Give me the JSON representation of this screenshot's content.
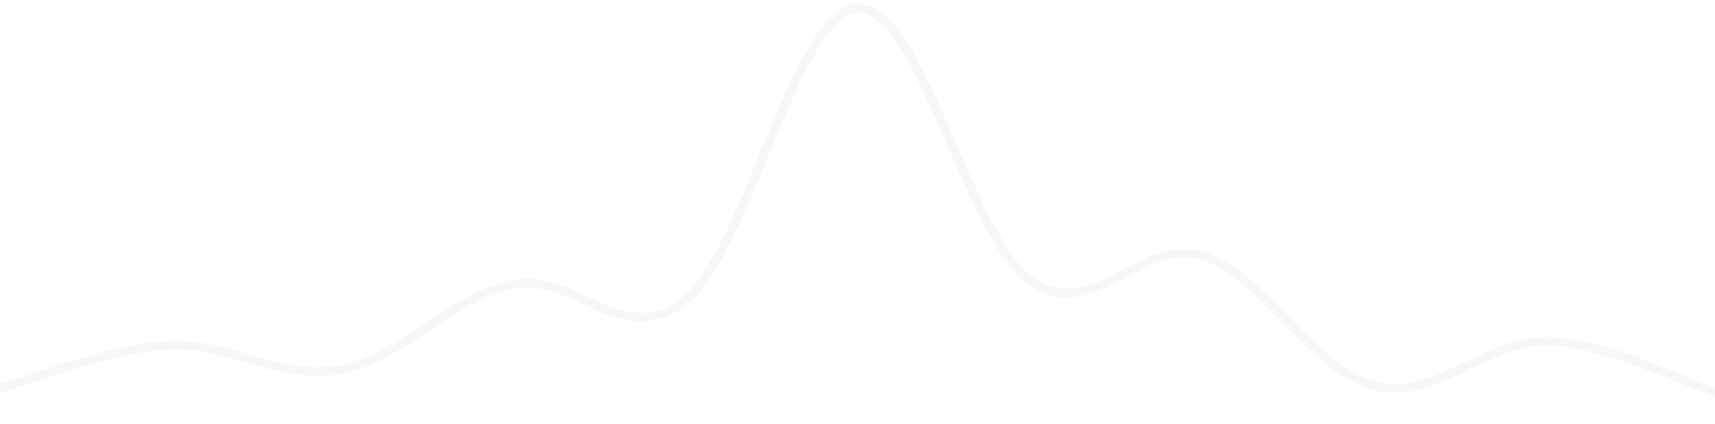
{
  "chart_data": {
    "type": "line",
    "title": "",
    "xlabel": "",
    "ylabel": "",
    "grid": false,
    "legend": "none",
    "series": [
      {
        "color": "#f5f8fb",
        "smooth": true,
        "values": [
          0.06,
          0.17,
          0.11,
          0.32,
          0.28,
          1.0,
          0.33,
          0.39,
          0.07,
          0.18,
          0.05
        ]
      }
    ],
    "x": [
      0,
      1,
      2,
      3,
      4,
      5,
      6,
      7,
      8,
      9,
      10
    ],
    "ylim": [
      0,
      1
    ]
  }
}
